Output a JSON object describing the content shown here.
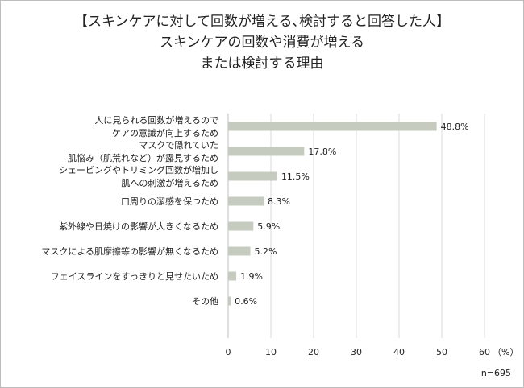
{
  "chart_data": {
    "type": "bar",
    "orientation": "horizontal",
    "title_lines": [
      "【スキンケアに対して回数が増える､検討すると回答した人】",
      "スキンケアの回数や消費が増える",
      "または検討する理由"
    ],
    "categories": [
      [
        "人に見られる回数が増えるので",
        "ケアの意識が向上するため"
      ],
      [
        "マスクで隠れていた",
        "肌悩み（肌荒れなど）が露見するため"
      ],
      [
        "シェービングやトリミング回数が増加し",
        "肌への刺激が増えるため"
      ],
      [
        "口周りの潔感を保つため"
      ],
      [
        "紫外線や日焼けの影響が大きくなるため"
      ],
      [
        "マスクによる肌摩擦等の影響が無くなるため"
      ],
      [
        "フェイスラインをすっきりと見せたいため"
      ],
      [
        "その他"
      ]
    ],
    "values": [
      48.8,
      17.8,
      11.5,
      8.3,
      5.9,
      5.2,
      1.9,
      0.6
    ],
    "value_labels": [
      "48.8%",
      "17.8%",
      "11.5%",
      "8.3%",
      "5.9%",
      "5.2%",
      "1.9%",
      "0.6%"
    ],
    "xlim": [
      0,
      60
    ],
    "xticks": [
      "0",
      "10",
      "20",
      "30",
      "40",
      "50",
      "60"
    ],
    "xunit": "（%）",
    "grid": true,
    "bar_color": "#c5ccbf",
    "grid_color": "#d9d9d9",
    "note": "n=695"
  }
}
